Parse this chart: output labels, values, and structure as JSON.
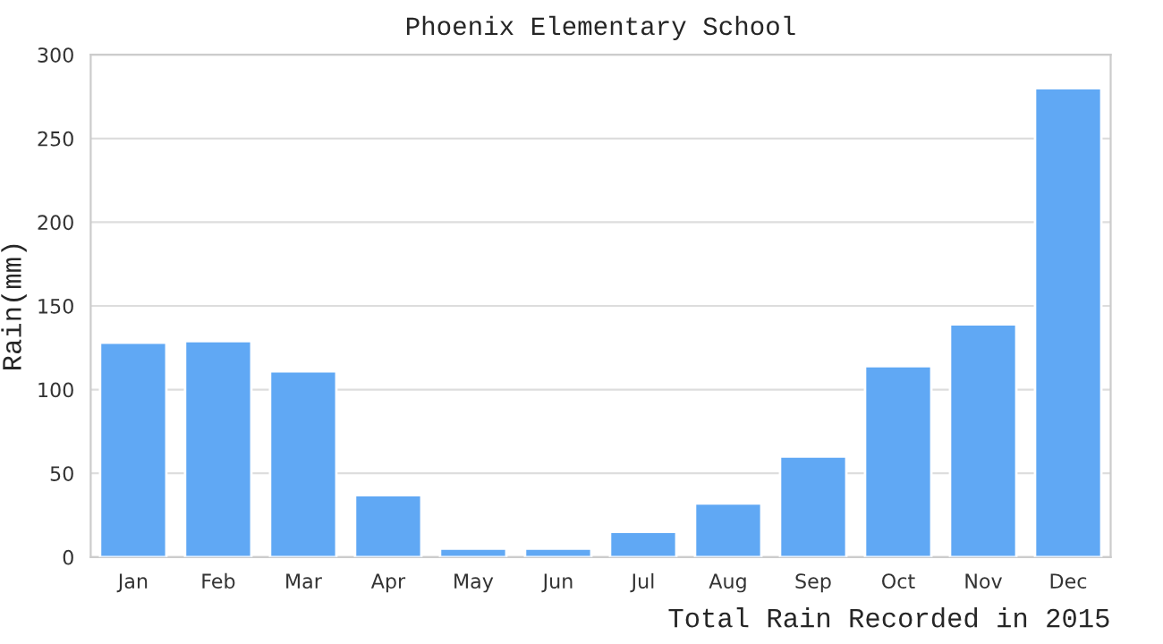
{
  "chart_data": {
    "type": "bar",
    "title": "Phoenix Elementary School",
    "xlabel": "Total Rain Recorded in 2015",
    "ylabel": "Rain(mm)",
    "categories": [
      "Jan",
      "Feb",
      "Mar",
      "Apr",
      "May",
      "Jun",
      "Jul",
      "Aug",
      "Sep",
      "Oct",
      "Nov",
      "Dec"
    ],
    "values": [
      128,
      129,
      111,
      37,
      5,
      5,
      15,
      32,
      60,
      114,
      139,
      280
    ],
    "color": "#60a8f4",
    "ylim": [
      0,
      300
    ],
    "yticks": [
      0,
      50,
      100,
      150,
      200,
      250,
      300
    ],
    "grid": "y"
  }
}
